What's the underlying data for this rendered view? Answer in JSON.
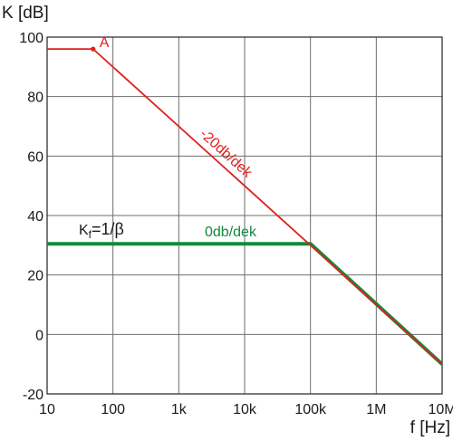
{
  "chart_data": {
    "type": "line",
    "title": "",
    "xlabel": "f [Hz]",
    "ylabel": "K [dB]",
    "x_scale": "log",
    "xlim": [
      10,
      10000000
    ],
    "ylim": [
      -20,
      100
    ],
    "grid": true,
    "x_ticks": [
      {
        "value": 10,
        "label": "10"
      },
      {
        "value": 100,
        "label": "100"
      },
      {
        "value": 1000,
        "label": "1k"
      },
      {
        "value": 10000,
        "label": "10k"
      },
      {
        "value": 100000,
        "label": "100k"
      },
      {
        "value": 1000000,
        "label": "1M"
      },
      {
        "value": 10000000,
        "label": "10M"
      }
    ],
    "y_ticks": [
      {
        "value": 100,
        "label": "100"
      },
      {
        "value": 80,
        "label": "80"
      },
      {
        "value": 60,
        "label": "60"
      },
      {
        "value": 40,
        "label": "40"
      },
      {
        "value": 20,
        "label": "20"
      },
      {
        "value": 0,
        "label": "0"
      },
      {
        "value": -20,
        "label": "-20"
      }
    ],
    "series": [
      {
        "color": "#e0201c",
        "points": [
          {
            "x": 10,
            "y": 96
          },
          {
            "x": 50,
            "y": 96
          },
          {
            "x": 10000000,
            "y": -10
          }
        ]
      },
      {
        "color": "#108a3c",
        "points": [
          {
            "x": 10,
            "y": 30.5
          },
          {
            "x": 100000,
            "y": 30.5
          },
          {
            "x": 10000000,
            "y": -10
          }
        ]
      }
    ],
    "annotations": {
      "point_a": {
        "label": "A",
        "x": 50,
        "y": 96,
        "color": "#e0201c"
      },
      "red_slope": {
        "text": "-20db/dek",
        "color": "#e0201c"
      },
      "green_slope": {
        "text": "0db/dek",
        "color": "#108a3c"
      },
      "kf": {
        "main": "K",
        "sub": "f",
        "rest": "=1/β",
        "color": "#1a1a1a"
      }
    }
  }
}
